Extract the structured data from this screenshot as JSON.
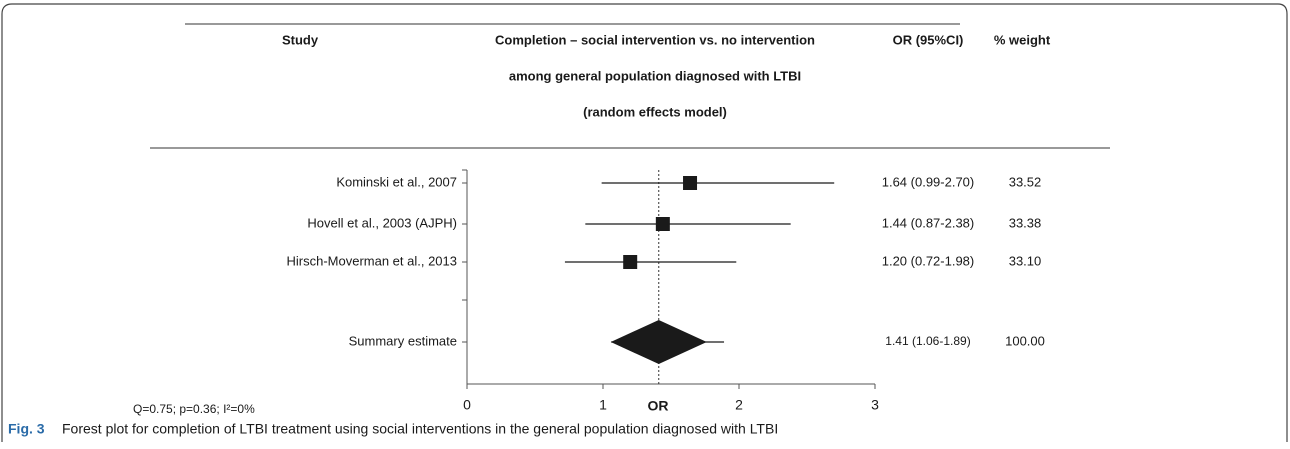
{
  "chart_data": {
    "type": "forest",
    "headers": {
      "study": "Study",
      "title": [
        "Completion – social intervention vs. no intervention",
        "among general population diagnosed with LTBI",
        "(random effects model)"
      ],
      "or": "OR (95%CI)",
      "weight": "% weight"
    },
    "studies": {
      "names": [
        "Kominski et al., 2007",
        "Hovell et al., 2003 (AJPH)",
        "Hirsch-Moverman et al., 2013"
      ],
      "or": [
        1.64,
        1.44,
        1.2
      ],
      "lower": [
        0.99,
        0.87,
        0.72
      ],
      "upper": [
        2.7,
        2.38,
        1.98
      ],
      "ci_labels": [
        "1.64 (0.99-2.70)",
        "1.44 (0.87-2.38)",
        "1.20 (0.72-1.98)"
      ],
      "weights": [
        33.52,
        33.38,
        33.1
      ],
      "weight_labels": [
        "33.52",
        "33.38",
        "33.10"
      ]
    },
    "summary": {
      "name": "Summary estimate",
      "or": 1.41,
      "lower": 1.06,
      "upper": 1.89,
      "ci_label": "1.41 (1.06-1.89)",
      "weight": 100,
      "weight_label": "100.00"
    },
    "xlabel": "OR",
    "xlim": [
      0,
      3
    ],
    "xticks": [
      0,
      1,
      2,
      3
    ],
    "stats": "Q=0.75; p=0.36; I²=0%",
    "caption": {
      "label": "Fig. 3",
      "text": "Forest plot for completion of LTBI treatment using social interventions in the general population diagnosed with LTBI"
    },
    "color": "#1a1a1a"
  }
}
